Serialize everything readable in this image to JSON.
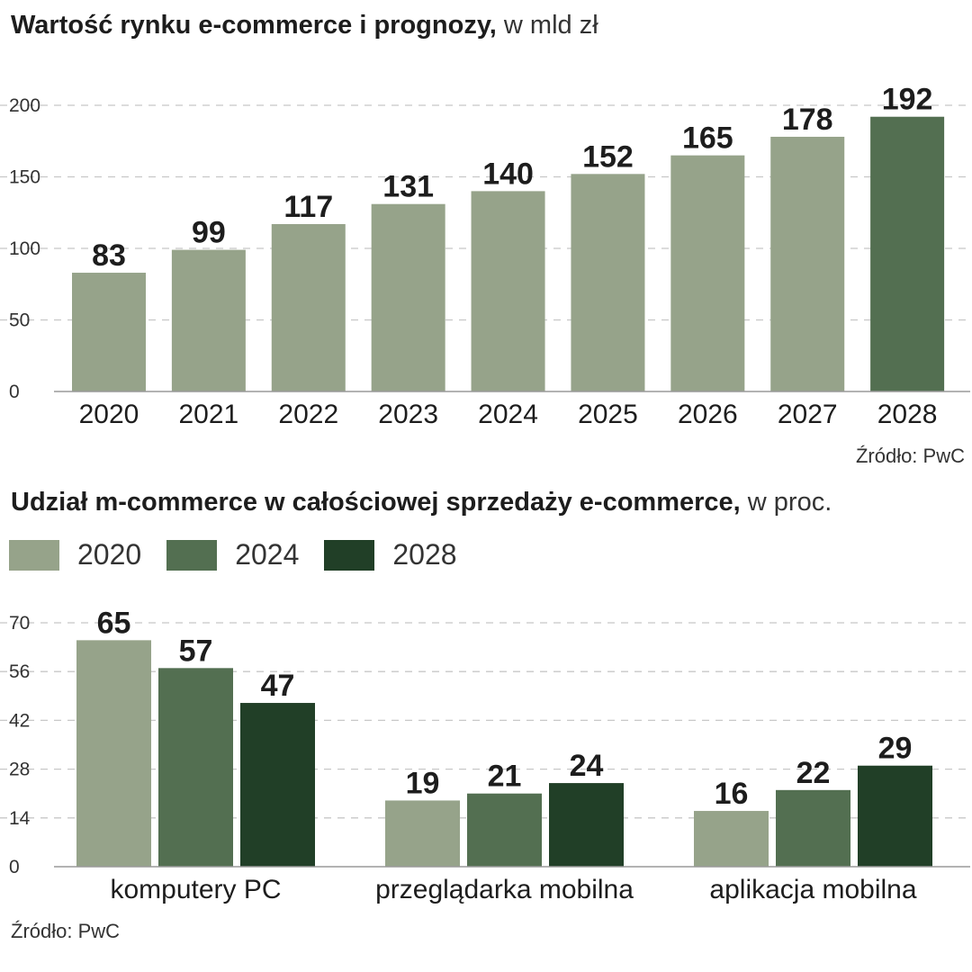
{
  "chart_data": [
    {
      "type": "bar",
      "title": "Wartość rynku e-commerce i prognozy,",
      "unit": "w mld zł",
      "categories": [
        "2020",
        "2021",
        "2022",
        "2023",
        "2024",
        "2025",
        "2026",
        "2027",
        "2028"
      ],
      "values": [
        83,
        99,
        117,
        131,
        140,
        152,
        165,
        178,
        192
      ],
      "yticks": [
        0,
        50,
        100,
        150,
        200
      ],
      "ylim": [
        0,
        200
      ],
      "grid": true,
      "colors": {
        "default": "#96a38a",
        "highlight": "#536f51"
      },
      "highlight_index": 8,
      "source": "Źródło: PwC"
    },
    {
      "type": "bar",
      "title": "Udział m-commerce w całościowej sprzedaży e-commerce,",
      "unit": "w proc.",
      "categories": [
        "komputery PC",
        "przeglądarka mobilna",
        "aplikacja mobilna"
      ],
      "series": [
        {
          "name": "2020",
          "values": [
            65,
            19,
            16
          ],
          "color": "#96a38a"
        },
        {
          "name": "2024",
          "values": [
            57,
            21,
            22
          ],
          "color": "#536f51"
        },
        {
          "name": "2028",
          "values": [
            47,
            24,
            29
          ],
          "color": "#213f27"
        }
      ],
      "yticks": [
        0,
        14,
        28,
        42,
        56,
        70
      ],
      "ylim": [
        0,
        70
      ],
      "grid": true,
      "legend_position": "top-left",
      "source": "Źródło: PwC"
    }
  ]
}
